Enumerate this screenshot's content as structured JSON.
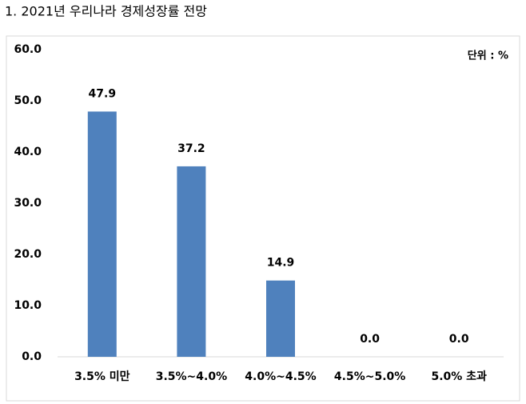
{
  "chart_data": {
    "type": "bar",
    "title": "1. 2021년 우리나라 경제성장률 전망",
    "unit": "단위 : %",
    "categories": [
      "3.5% 미만",
      "3.5%~4.0%",
      "4.0%~4.5%",
      "4.5%~5.0%",
      "5.0% 초과"
    ],
    "values": [
      47.9,
      37.2,
      14.9,
      0,
      0
    ],
    "value_labels": [
      "47.9",
      "37.2",
      "14.9",
      "0.0",
      "0.0"
    ],
    "color": "#4f81bd",
    "ylim": [
      0,
      60
    ],
    "yticks": [
      {
        "value": 0,
        "label": "0.0"
      },
      {
        "value": 10,
        "label": "10.0"
      },
      {
        "value": 20,
        "label": "20.0"
      },
      {
        "value": 30,
        "label": "30.0"
      },
      {
        "value": 40,
        "label": "40.0"
      },
      {
        "value": 50,
        "label": "50.0"
      },
      {
        "value": 60,
        "label": "60.0"
      }
    ],
    "grid": false
  }
}
